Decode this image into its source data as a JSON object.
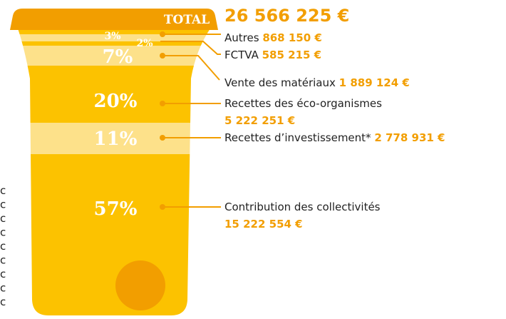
{
  "total": {
    "label": "TOTAL",
    "amount": "26 566 225 €"
  },
  "items": [
    {
      "percent": "3%",
      "label": "Autres",
      "amount": "868 150 €"
    },
    {
      "percent": "2%",
      "label": "FCTVA",
      "amount": "585 215 €"
    },
    {
      "percent": "7%",
      "label": "Vente des matériaux",
      "amount": "1 889 124 €"
    },
    {
      "percent": "20%",
      "label": "Recettes des éco-organismes",
      "amount": "5 222 251 €"
    },
    {
      "percent": "11%",
      "label": "Recettes d’investissement*",
      "amount": "2 778 931 €"
    },
    {
      "percent": "57%",
      "label": "Contribution des collectivités",
      "amount": "15 222 554 €"
    }
  ],
  "side_marks": [
    "c",
    "c",
    "c",
    "c",
    "c",
    "c",
    "c",
    "c",
    "c"
  ]
}
